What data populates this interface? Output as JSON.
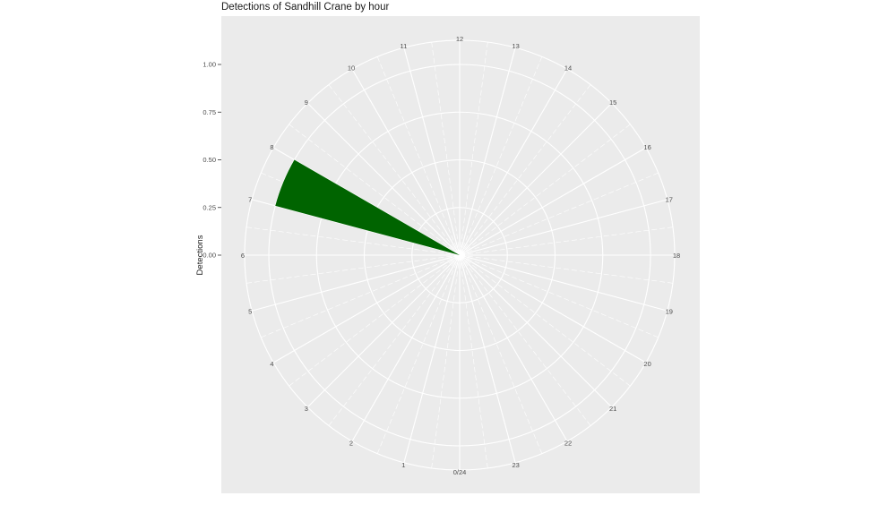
{
  "chart_data": {
    "type": "bar",
    "coord": "polar",
    "title": "Detections of Sandhill Crane by hour",
    "xlabel": "",
    "ylabel": "Detections",
    "theta_tick_labels": [
      "0/24",
      "1",
      "2",
      "3",
      "4",
      "5",
      "6",
      "7",
      "8",
      "9",
      "10",
      "11",
      "12",
      "13",
      "14",
      "15",
      "16",
      "17",
      "18",
      "19",
      "20",
      "21",
      "22",
      "23"
    ],
    "y_tick_labels": [
      "0.00",
      "0.25",
      "0.50",
      "0.75",
      "1.00"
    ],
    "y_ticks": [
      0,
      0.25,
      0.5,
      0.75,
      1.0
    ],
    "ylim": [
      0,
      1.125
    ],
    "bars": [
      {
        "hour_start": 7,
        "hour_end": 8,
        "value": 1
      }
    ],
    "bar_color": "#006400",
    "panel_background": "#EBEBEB",
    "grid": true
  }
}
